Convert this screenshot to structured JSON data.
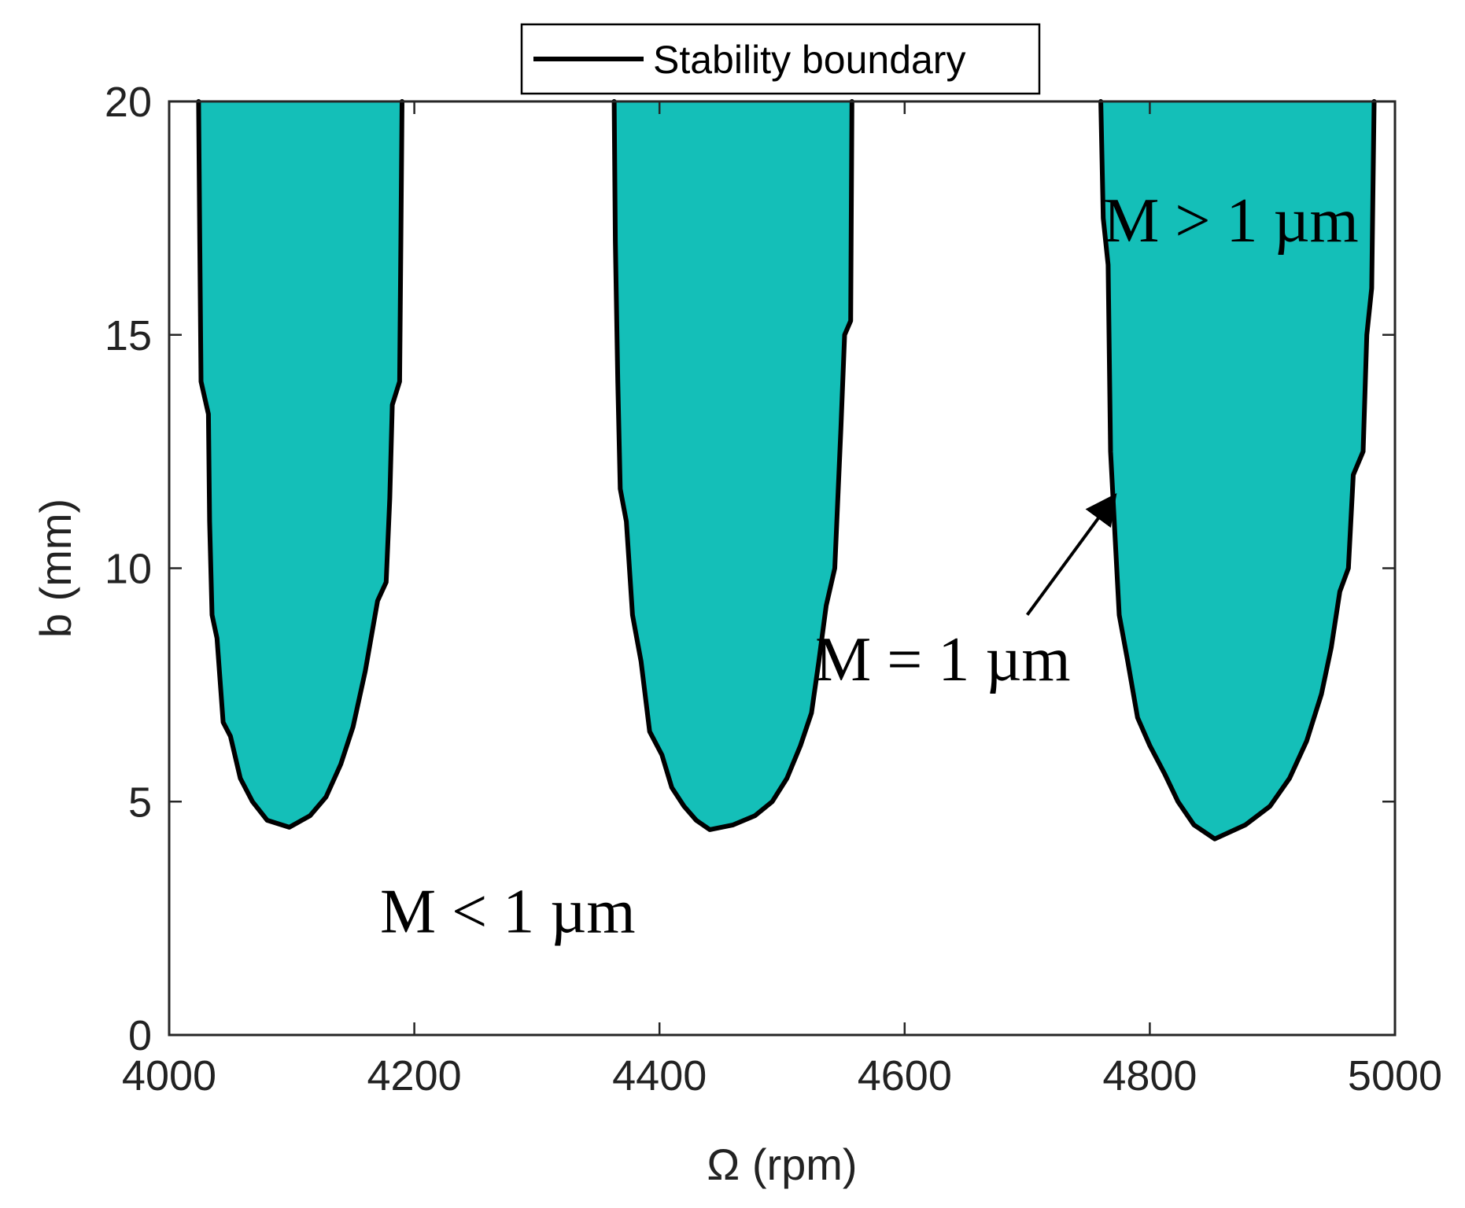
{
  "chart_data": {
    "type": "area",
    "xlabel": "Ω (rpm)",
    "ylabel": "b (mm)",
    "xlim": [
      4000,
      5000
    ],
    "ylim": [
      0,
      20
    ],
    "xticks": [
      4000,
      4200,
      4400,
      4600,
      4800,
      5000
    ],
    "yticks": [
      0,
      5,
      10,
      15,
      20
    ],
    "legend": {
      "position": "top-center",
      "entries": [
        "Stability boundary"
      ]
    },
    "colors": {
      "fill": "#14bfb8",
      "boundary": "#000000"
    },
    "lobes": [
      {
        "left": [
          [
            4024,
            20
          ],
          [
            4025,
            17
          ],
          [
            4026,
            14
          ],
          [
            4032,
            13.3
          ],
          [
            4033,
            11
          ],
          [
            4035,
            9
          ],
          [
            4039,
            8.5
          ],
          [
            4044,
            6.7
          ],
          [
            4050,
            6.4
          ],
          [
            4058,
            5.5
          ],
          [
            4068,
            5.0
          ],
          [
            4080,
            4.6
          ],
          [
            4098,
            4.45
          ]
        ],
        "right": [
          [
            4190,
            20
          ],
          [
            4189,
            17
          ],
          [
            4188,
            14
          ],
          [
            4182,
            13.5
          ],
          [
            4180,
            11.5
          ],
          [
            4177,
            9.7
          ],
          [
            4170,
            9.3
          ],
          [
            4160,
            7.8
          ],
          [
            4150,
            6.6
          ],
          [
            4140,
            5.8
          ],
          [
            4128,
            5.1
          ],
          [
            4115,
            4.7
          ],
          [
            4098,
            4.45
          ]
        ]
      },
      {
        "left": [
          [
            4363,
            20
          ],
          [
            4364,
            17
          ],
          [
            4366,
            14
          ],
          [
            4368,
            11.7
          ],
          [
            4373,
            11
          ],
          [
            4378,
            9
          ],
          [
            4385,
            8
          ],
          [
            4392,
            6.5
          ],
          [
            4402,
            6.0
          ],
          [
            4410,
            5.3
          ],
          [
            4420,
            4.9
          ],
          [
            4430,
            4.6
          ],
          [
            4441,
            4.4
          ]
        ],
        "right": [
          [
            4557,
            20
          ],
          [
            4556,
            15.3
          ],
          [
            4551,
            15
          ],
          [
            4548,
            13
          ],
          [
            4543,
            10
          ],
          [
            4536,
            9.2
          ],
          [
            4530,
            8.0
          ],
          [
            4524,
            6.9
          ],
          [
            4515,
            6.2
          ],
          [
            4504,
            5.5
          ],
          [
            4492,
            5.0
          ],
          [
            4478,
            4.7
          ],
          [
            4460,
            4.5
          ],
          [
            4441,
            4.4
          ]
        ]
      },
      {
        "left": [
          [
            4760,
            20
          ],
          [
            4762,
            17.5
          ],
          [
            4766,
            16.5
          ],
          [
            4768,
            12.5
          ],
          [
            4771,
            11
          ],
          [
            4775,
            9.0
          ],
          [
            4782,
            8.0
          ],
          [
            4790,
            6.8
          ],
          [
            4800,
            6.2
          ],
          [
            4812,
            5.6
          ],
          [
            4823,
            5.0
          ],
          [
            4836,
            4.5
          ],
          [
            4853,
            4.2
          ]
        ],
        "right": [
          [
            4983,
            20
          ],
          [
            4981,
            16
          ],
          [
            4977,
            15
          ],
          [
            4974,
            12.5
          ],
          [
            4966,
            12.0
          ],
          [
            4962,
            10
          ],
          [
            4955,
            9.5
          ],
          [
            4948,
            8.3
          ],
          [
            4940,
            7.3
          ],
          [
            4928,
            6.3
          ],
          [
            4914,
            5.5
          ],
          [
            4898,
            4.9
          ],
          [
            4878,
            4.5
          ],
          [
            4853,
            4.2
          ]
        ]
      }
    ],
    "annotations": [
      {
        "id": "gt",
        "text": "M > 1 µm",
        "x": 4762,
        "y": 17
      },
      {
        "id": "eq",
        "text": "M = 1 µm",
        "x": 4527,
        "y": 7.6,
        "arrow_to": [
          4770,
          11.5
        ],
        "arrow_from": [
          4700,
          9.0
        ]
      },
      {
        "id": "lt",
        "text": "M < 1 µm",
        "x": 4172,
        "y": 2.2
      }
    ],
    "grid": false
  }
}
